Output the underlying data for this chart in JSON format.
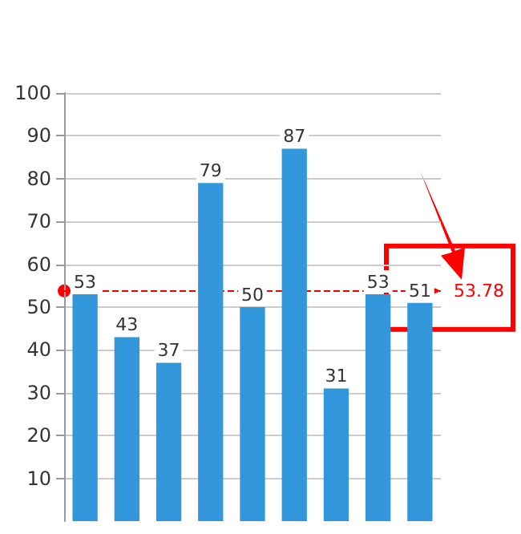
{
  "chart_data": {
    "type": "bar",
    "categories": [
      null,
      null,
      null,
      null,
      null,
      null,
      null,
      null,
      null
    ],
    "values": [
      53,
      43,
      37,
      79,
      50,
      87,
      31,
      53,
      51
    ],
    "color": "#3398db",
    "data_labels": true,
    "ylim": [
      0,
      100
    ],
    "yticks": [
      10,
      20,
      30,
      40,
      50,
      60,
      70,
      80,
      90,
      100
    ],
    "grid": "y",
    "ref_lines": [
      {
        "axis": "y",
        "value": 53.78,
        "label": "53.78",
        "color": "#ff0000",
        "line_style": "dashed"
      }
    ]
  }
}
